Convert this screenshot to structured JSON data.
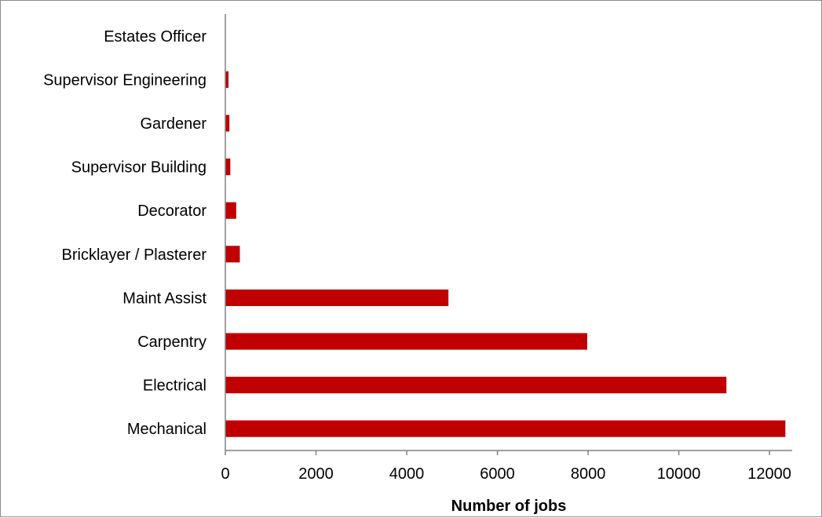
{
  "chart_data": {
    "type": "bar",
    "orientation": "horizontal",
    "title": "",
    "xlabel": "Number of jobs",
    "ylabel": "",
    "categories": [
      "Mechanical",
      "Electrical",
      "Carpentry",
      "Maint Assist",
      "Bricklayer / Plasterer",
      "Decorator",
      "Supervisor Building",
      "Gardener",
      "Supervisor Engineering",
      "Estates Officer"
    ],
    "values": [
      12350,
      11050,
      7980,
      4920,
      320,
      240,
      110,
      90,
      70,
      0
    ],
    "xlim": [
      0,
      12500
    ],
    "xticks": [
      "0",
      "2000",
      "4000",
      "6000",
      "8000",
      "10000",
      "12000"
    ],
    "grid": false,
    "legend": false,
    "bar_color": "#C00000"
  }
}
